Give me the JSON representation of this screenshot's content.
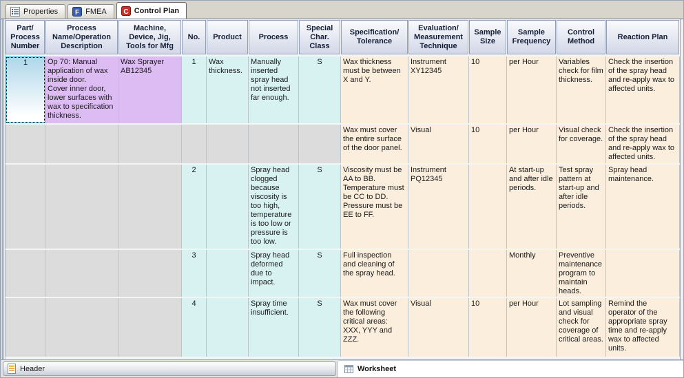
{
  "tabs": [
    {
      "label": "Properties",
      "icon": "properties-icon",
      "active": false
    },
    {
      "label": "FMEA",
      "icon": "fmea-icon",
      "active": false
    },
    {
      "label": "Control Plan",
      "icon": "control-plan-icon",
      "active": true
    }
  ],
  "table": {
    "columns": [
      "Part/\nProcess\nNumber",
      "Process\nName/Operation\nDescription",
      "Machine,\nDevice, Jig,\nTools for Mfg",
      "No.",
      "Product",
      "Process",
      "Special\nChar.\nClass",
      "Specification/\nTolerance",
      "Evaluation/\nMeasurement\nTechnique",
      "Sample\nSize",
      "Sample\nFrequency",
      "Control\nMethod",
      "Reaction Plan"
    ],
    "rows": [
      {
        "texts": [
          "1",
          "Op 70: Manual application of wax inside door.\nCover inner door, lower surfaces with wax to specification thickness.",
          "Wax Sprayer AB12345",
          "1",
          "Wax thickness.",
          "Manually inserted spray head not inserted far enough.",
          "S",
          "Wax thickness must be between X and Y.",
          "Instrument XY12345",
          "10",
          "per Hour",
          "Variables check for film thickness.",
          "Check the insertion of the spray head and re-apply wax to affected units."
        ],
        "bgs": [
          "sel",
          "purple",
          "purple",
          "cyan",
          "cyan",
          "cyan",
          "cyan",
          "peach",
          "peach",
          "peach",
          "peach",
          "peach",
          "peach"
        ]
      },
      {
        "texts": [
          "",
          "",
          "",
          "",
          "",
          "",
          "",
          "Wax must cover the entire surface of the door panel.",
          "Visual",
          "10",
          "per Hour",
          "Visual check for coverage.",
          "Check the insertion of the spray head and re-apply wax to affected units."
        ],
        "bgs": [
          "gray",
          "gray",
          "gray",
          "gray",
          "gray",
          "gray",
          "gray",
          "peach",
          "peach",
          "peach",
          "peach",
          "peach",
          "peach"
        ]
      },
      {
        "texts": [
          "",
          "",
          "",
          "2",
          "",
          "Spray head clogged because viscosity is too high, temperature is too low or pressure is too low.",
          "S",
          "Viscosity must be AA to BB.\nTemperature must be CC to DD.\nPressure must be EE to FF.",
          "Instrument PQ12345",
          "",
          "At start-up and after idle periods.",
          "Test spray pattern at start-up and after idle periods.",
          "Spray head maintenance."
        ],
        "bgs": [
          "gray",
          "gray",
          "gray",
          "cyan",
          "cyan",
          "cyan",
          "cyan",
          "peach",
          "peach",
          "peach",
          "peach",
          "peach",
          "peach"
        ]
      },
      {
        "texts": [
          "",
          "",
          "",
          "3",
          "",
          "Spray head deformed due to impact.",
          "S",
          "Full inspection and cleaning of the spray head.",
          "",
          "",
          "Monthly",
          "Preventive maintenance program to maintain heads.",
          ""
        ],
        "bgs": [
          "gray",
          "gray",
          "gray",
          "cyan",
          "cyan",
          "cyan",
          "cyan",
          "peach",
          "peach",
          "peach",
          "peach",
          "peach",
          "peach"
        ]
      },
      {
        "texts": [
          "",
          "",
          "",
          "4",
          "",
          "Spray time insufficient.",
          "S",
          "Wax must cover the following critical areas: XXX, YYY and ZZZ.",
          "Visual",
          "10",
          "per Hour",
          "Lot sampling and visual check for coverage of critical areas.",
          "Remind the operator of the appropriate spray time and re-apply wax to affected units."
        ],
        "bgs": [
          "gray",
          "gray",
          "gray",
          "cyan",
          "cyan",
          "cyan",
          "cyan",
          "peach",
          "peach",
          "peach",
          "peach",
          "peach",
          "peach"
        ]
      }
    ]
  },
  "footer": {
    "header_label": "Header",
    "worksheet_label": "Worksheet",
    "header_icon": "document-icon",
    "worksheet_icon": "worksheet-grid-icon"
  },
  "colors": {
    "purple": "#ddbcf4",
    "cyan": "#d8f2f2",
    "peach": "#fceedd",
    "gray": "#dcdcdc",
    "selected_cell_top": "#aed7ea",
    "selection_border": "#3fbede",
    "header_text": "#141f38",
    "fmea_icon_fill": "#3b5db8",
    "control_plan_icon_fill": "#c23428"
  }
}
